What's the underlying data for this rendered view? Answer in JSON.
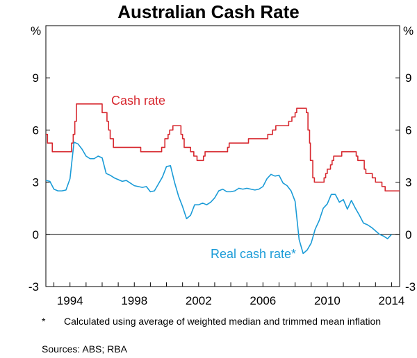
{
  "chart_data": {
    "type": "line",
    "title": "Australian Cash Rate",
    "ylabel_left": "%",
    "ylabel_right": "%",
    "ylim": [
      -3,
      12
    ],
    "xlim": [
      1992.5,
      2014.5
    ],
    "y_ticks": [
      "-3",
      "0",
      "3",
      "6",
      "9"
    ],
    "x_ticks": [
      {
        "value": 1994,
        "label": "1994"
      },
      {
        "value": 1998,
        "label": "1998"
      },
      {
        "value": 2002,
        "label": "2002"
      },
      {
        "value": 2006,
        "label": "2006"
      },
      {
        "value": 2010,
        "label": "2010"
      },
      {
        "value": 2014,
        "label": "2014"
      }
    ],
    "zero_line": true,
    "series": [
      {
        "name": "Cash rate",
        "label": "Cash rate",
        "color": "#d7282f",
        "step": true,
        "points": [
          [
            1992.5,
            5.75
          ],
          [
            1992.6,
            5.25
          ],
          [
            1992.9,
            4.75
          ],
          [
            1994.1,
            5.25
          ],
          [
            1994.2,
            5.75
          ],
          [
            1994.3,
            6.5
          ],
          [
            1994.4,
            7.5
          ],
          [
            1996.0,
            7.0
          ],
          [
            1996.3,
            6.5
          ],
          [
            1996.4,
            6.0
          ],
          [
            1996.5,
            5.5
          ],
          [
            1996.7,
            5.0
          ],
          [
            1998.0,
            5.0
          ],
          [
            1998.4,
            4.75
          ],
          [
            1999.7,
            5.0
          ],
          [
            1999.9,
            5.5
          ],
          [
            2000.1,
            5.75
          ],
          [
            2000.2,
            6.0
          ],
          [
            2000.4,
            6.25
          ],
          [
            2000.9,
            5.75
          ],
          [
            2001.0,
            5.5
          ],
          [
            2001.1,
            5.0
          ],
          [
            2001.5,
            4.75
          ],
          [
            2001.7,
            4.5
          ],
          [
            2001.9,
            4.25
          ],
          [
            2002.3,
            4.5
          ],
          [
            2002.4,
            4.75
          ],
          [
            2003.8,
            5.0
          ],
          [
            2003.9,
            5.25
          ],
          [
            2005.1,
            5.5
          ],
          [
            2006.3,
            5.75
          ],
          [
            2006.6,
            6.0
          ],
          [
            2006.8,
            6.25
          ],
          [
            2007.6,
            6.5
          ],
          [
            2007.8,
            6.75
          ],
          [
            2008.0,
            7.0
          ],
          [
            2008.1,
            7.25
          ],
          [
            2008.7,
            7.0
          ],
          [
            2008.8,
            6.0
          ],
          [
            2008.9,
            5.25
          ],
          [
            2008.95,
            4.25
          ],
          [
            2009.1,
            3.25
          ],
          [
            2009.2,
            3.0
          ],
          [
            2009.8,
            3.25
          ],
          [
            2009.9,
            3.5
          ],
          [
            2010.0,
            3.75
          ],
          [
            2010.2,
            4.0
          ],
          [
            2010.3,
            4.25
          ],
          [
            2010.4,
            4.5
          ],
          [
            2010.9,
            4.75
          ],
          [
            2011.8,
            4.5
          ],
          [
            2011.9,
            4.25
          ],
          [
            2012.3,
            3.75
          ],
          [
            2012.4,
            3.5
          ],
          [
            2012.8,
            3.25
          ],
          [
            2013.0,
            3.0
          ],
          [
            2013.4,
            2.75
          ],
          [
            2013.6,
            2.5
          ],
          [
            2014.5,
            2.5
          ]
        ]
      },
      {
        "name": "Real cash rate",
        "label": "Real cash rate*",
        "color": "#1a9bd7",
        "step": false,
        "points": [
          [
            1992.5,
            3.1
          ],
          [
            1992.75,
            3.05
          ],
          [
            1993.0,
            2.6
          ],
          [
            1993.25,
            2.5
          ],
          [
            1993.5,
            2.5
          ],
          [
            1993.75,
            2.55
          ],
          [
            1994.0,
            3.2
          ],
          [
            1994.25,
            5.3
          ],
          [
            1994.5,
            5.2
          ],
          [
            1994.75,
            4.9
          ],
          [
            1995.0,
            4.5
          ],
          [
            1995.25,
            4.35
          ],
          [
            1995.5,
            4.35
          ],
          [
            1995.75,
            4.5
          ],
          [
            1996.0,
            4.4
          ],
          [
            1996.25,
            3.5
          ],
          [
            1996.5,
            3.4
          ],
          [
            1996.75,
            3.25
          ],
          [
            1997.0,
            3.15
          ],
          [
            1997.25,
            3.05
          ],
          [
            1997.5,
            3.1
          ],
          [
            1997.75,
            2.95
          ],
          [
            1998.0,
            2.8
          ],
          [
            1998.25,
            2.75
          ],
          [
            1998.5,
            2.7
          ],
          [
            1998.75,
            2.75
          ],
          [
            1999.0,
            2.45
          ],
          [
            1999.25,
            2.5
          ],
          [
            1999.5,
            2.9
          ],
          [
            1999.75,
            3.3
          ],
          [
            2000.0,
            3.9
          ],
          [
            2000.25,
            3.95
          ],
          [
            2000.5,
            3.0
          ],
          [
            2000.75,
            2.2
          ],
          [
            2001.0,
            1.6
          ],
          [
            2001.25,
            0.9
          ],
          [
            2001.5,
            1.1
          ],
          [
            2001.75,
            1.7
          ],
          [
            2002.0,
            1.7
          ],
          [
            2002.25,
            1.8
          ],
          [
            2002.5,
            1.7
          ],
          [
            2002.75,
            1.85
          ],
          [
            2003.0,
            2.1
          ],
          [
            2003.25,
            2.5
          ],
          [
            2003.5,
            2.6
          ],
          [
            2003.75,
            2.45
          ],
          [
            2004.0,
            2.45
          ],
          [
            2004.25,
            2.5
          ],
          [
            2004.5,
            2.65
          ],
          [
            2004.75,
            2.6
          ],
          [
            2005.0,
            2.65
          ],
          [
            2005.25,
            2.6
          ],
          [
            2005.5,
            2.55
          ],
          [
            2005.75,
            2.6
          ],
          [
            2006.0,
            2.75
          ],
          [
            2006.25,
            3.2
          ],
          [
            2006.5,
            3.45
          ],
          [
            2006.75,
            3.35
          ],
          [
            2007.0,
            3.4
          ],
          [
            2007.25,
            2.95
          ],
          [
            2007.5,
            2.8
          ],
          [
            2007.75,
            2.5
          ],
          [
            2008.0,
            1.9
          ],
          [
            2008.25,
            -0.3
          ],
          [
            2008.5,
            -1.1
          ],
          [
            2008.75,
            -0.9
          ],
          [
            2009.0,
            -0.5
          ],
          [
            2009.25,
            0.3
          ],
          [
            2009.5,
            0.8
          ],
          [
            2009.75,
            1.5
          ],
          [
            2010.0,
            1.75
          ],
          [
            2010.25,
            2.3
          ],
          [
            2010.5,
            2.3
          ],
          [
            2010.75,
            1.85
          ],
          [
            2011.0,
            2.0
          ],
          [
            2011.25,
            1.45
          ],
          [
            2011.5,
            1.95
          ],
          [
            2011.75,
            1.5
          ],
          [
            2012.0,
            1.1
          ],
          [
            2012.25,
            0.65
          ],
          [
            2012.5,
            0.55
          ],
          [
            2012.75,
            0.4
          ],
          [
            2013.0,
            0.2
          ],
          [
            2013.25,
            0.0
          ],
          [
            2013.5,
            -0.1
          ],
          [
            2013.75,
            -0.25
          ],
          [
            2014.0,
            0.0
          ]
        ]
      }
    ]
  },
  "footnote": {
    "marker": "*",
    "text": "Calculated using average of weighted median and trimmed mean inflation"
  },
  "sources": "Sources:   ABS; RBA"
}
